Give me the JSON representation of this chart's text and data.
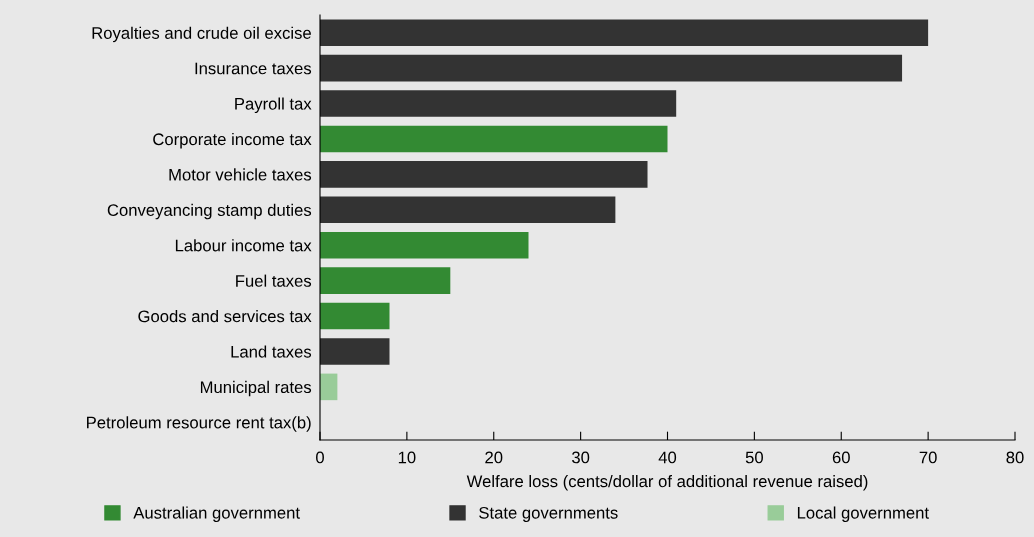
{
  "chart_data": {
    "type": "bar",
    "orientation": "horizontal",
    "categories": [
      "Royalties and crude oil excise",
      "Insurance taxes",
      "Payroll tax",
      "Corporate income tax",
      "Motor vehicle taxes",
      "Conveyancing stamp duties",
      "Labour income tax",
      "Fuel taxes",
      "Goods and services tax",
      "Land taxes",
      "Municipal rates",
      "Petroleum resource rent tax(b)"
    ],
    "series": [
      {
        "name": "Australian government",
        "color": "#338a33",
        "values": [
          null,
          null,
          null,
          40,
          null,
          null,
          24,
          15,
          8,
          null,
          null,
          0
        ]
      },
      {
        "name": "State governments",
        "color": "#333333",
        "values": [
          70,
          67,
          41,
          null,
          37.7,
          34,
          null,
          null,
          null,
          8,
          null,
          null
        ]
      },
      {
        "name": "Local government",
        "color": "#99cc99",
        "values": [
          null,
          null,
          null,
          null,
          null,
          null,
          null,
          null,
          null,
          null,
          2,
          null
        ]
      }
    ],
    "xlabel": "Welfare loss (cents/dollar of additional revenue raised)",
    "xlim": [
      0,
      80
    ],
    "xticks": [
      0,
      10,
      20,
      30,
      40,
      50,
      60,
      70,
      80
    ],
    "grid": false,
    "legend": "bottom"
  }
}
